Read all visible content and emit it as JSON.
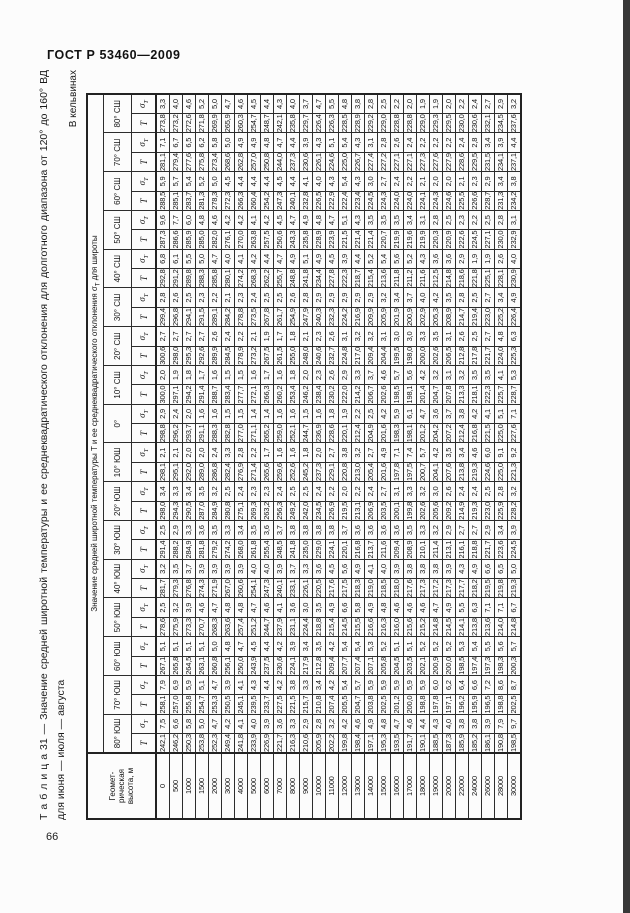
{
  "page": {
    "header": "ГОСТ Р 53460—2009",
    "page_number": "66",
    "caption_line1": "Т а б л и ц а  31 — Значение средней широтной температуры и ее среднеквадратического отклонения для долготного диапазона от 120° до 160° ВД",
    "caption_line2": "для июня — июля — августа",
    "units_note": "В кельвинах"
  },
  "table": {
    "height_header_lines": [
      "Геомет-",
      "рическая",
      "высота, м"
    ],
    "span_header_a": "Значение средней широтной температуры Т и ее среднеквадратического отклонения σ",
    "span_header_sub": "Т",
    "span_header_b": " для широты",
    "t_label": "Т",
    "sigma_label": "σ",
    "sigma_sub": "Т",
    "heights": [
      "0",
      "500",
      "1000",
      "1500",
      "2000",
      "3000",
      "4000",
      "5000",
      "6000",
      "7000",
      "8000",
      "9000",
      "10000",
      "11000",
      "12000",
      "13000",
      "14000",
      "15000",
      "16000",
      "17000",
      "18000",
      "19000",
      "20000",
      "22000",
      "24000",
      "26000",
      "28000",
      "30000"
    ],
    "latitudes": [
      {
        "label": "80° ЮШ",
        "T": [
          "242,1",
          "246,2",
          "250,3",
          "253,8",
          "252,3",
          "249,4",
          "241,8",
          "233,9",
          "226,9",
          "221,7",
          "216,3",
          "210,6",
          "205,9",
          "202,2",
          "199,8",
          "198,4",
          "197,1",
          "195,3",
          "193,5",
          "191,7",
          "190,1",
          "188,5",
          "187,3",
          "185,9",
          "185,2",
          "186,1",
          "190,8",
          "198,5"
        ],
        "sigma": [
          "7,5",
          "6,6",
          "5,8",
          "5,0",
          "4,7",
          "4,2",
          "4,1",
          "4,0",
          "3,9",
          "3,6",
          "3,3",
          "2,9",
          "2,8",
          "3,2",
          "4,2",
          "4,6",
          "4,9",
          "4,8",
          "4,7",
          "4,6",
          "4,4",
          "4,3",
          "4,0",
          "3,8",
          "3,8",
          "3,9",
          "7,9",
          "9,7"
        ]
      },
      {
        "label": "70° ЮШ",
        "T": [
          "258,1",
          "257,0",
          "255,8",
          "254,7",
          "253,3",
          "250,5",
          "245,1",
          "239,5",
          "233,7",
          "227,5",
          "221,5",
          "215,7",
          "210,8",
          "207,4",
          "205,5",
          "204,7",
          "203,8",
          "202,5",
          "201,2",
          "200,0",
          "198,8",
          "197,8",
          "197,1",
          "196,2",
          "195,9",
          "196,5",
          "198,8",
          "202,5"
        ],
        "sigma": [
          "7,9",
          "6,9",
          "5,9",
          "5,1",
          "4,7",
          "3,9",
          "4,1",
          "4,3",
          "4,4",
          "4,2",
          "3,8",
          "3,3",
          "3,4",
          "4,2",
          "5,4",
          "5,7",
          "5,9",
          "5,9",
          "5,9",
          "5,9",
          "5,9",
          "6,0",
          "6,2",
          "6,4",
          "6,6",
          "7,2",
          "8,6",
          "8,7"
        ]
      },
      {
        "label": "60° ЮШ",
        "T": [
          "267,1",
          "265,8",
          "264,5",
          "263,1",
          "260,8",
          "256,1",
          "250,0",
          "243,9",
          "237,5",
          "230,6",
          "224,1",
          "217,9",
          "212,8",
          "209,4",
          "207,7",
          "207,4",
          "207,1",
          "205,8",
          "204,5",
          "203,5",
          "202,1",
          "200,9",
          "200,0",
          "198,5",
          "197,4",
          "197,3",
          "198,3",
          "200,3"
        ],
        "sigma": [
          "5,1",
          "5,1",
          "5,1",
          "5,1",
          "5,0",
          "4,8",
          "4,7",
          "4,5",
          "4,4",
          "4,2",
          "3,9",
          "3,4",
          "3,5",
          "4,2",
          "5,4",
          "5,4",
          "5,3",
          "5,2",
          "5,1",
          "5,1",
          "5,2",
          "5,2",
          "5,2",
          "5,3",
          "5,4",
          "5,5",
          "5,6",
          "5,7"
        ]
      },
      {
        "label": "50° ЮШ",
        "T": [
          "278,6",
          "275,9",
          "273,3",
          "270,7",
          "268,3",
          "263,6",
          "257,4",
          "251,2",
          "244,7",
          "237,9",
          "231,1",
          "224,4",
          "218,8",
          "215,4",
          "214,5",
          "215,5",
          "216,6",
          "216,3",
          "216,0",
          "215,6",
          "215,2",
          "214,8",
          "214,5",
          "214,1",
          "213,8",
          "213,6",
          "214,0",
          "214,8"
        ],
        "sigma": [
          "2,5",
          "3,2",
          "3,9",
          "4,6",
          "4,7",
          "4,8",
          "4,8",
          "4,7",
          "4,6",
          "4,1",
          "3,6",
          "3,0",
          "3,5",
          "4,9",
          "6,6",
          "5,8",
          "4,9",
          "4,8",
          "4,6",
          "4,6",
          "4,6",
          "4,7",
          "4,9",
          "5,5",
          "6,3",
          "7,1",
          "7,1",
          "6,7"
        ]
      },
      {
        "label": "40° ЮШ",
        "T": [
          "281,7",
          "279,3",
          "276,8",
          "274,3",
          "271,9",
          "267,0",
          "260,6",
          "254,1",
          "247,3",
          "240,1",
          "233,1",
          "226,1",
          "220,5",
          "217,6",
          "217,5",
          "218,3",
          "219,0",
          "218,5",
          "218,0",
          "217,6",
          "217,3",
          "217,2",
          "217,3",
          "217,7",
          "218,2",
          "219,5",
          "219,8",
          "219,3"
        ],
        "sigma": [
          "3,2",
          "3,5",
          "3,7",
          "3,9",
          "3,9",
          "3,9",
          "3,9",
          "4,0",
          "4,0",
          "3,9",
          "3,7",
          "3,3",
          "3,6",
          "4,5",
          "5,6",
          "4,9",
          "4,1",
          "4,0",
          "3,9",
          "3,8",
          "3,8",
          "3,8",
          "3,9",
          "4,3",
          "4,9",
          "6,6",
          "6,5",
          "5,0"
        ]
      },
      {
        "label": "30° ЮШ",
        "T": [
          "291,4",
          "288,2",
          "284,9",
          "281,8",
          "279,2",
          "274,2",
          "268,0",
          "261,8",
          "255,4",
          "248,5",
          "241,8",
          "235,0",
          "229,0",
          "224,1",
          "220,1",
          "216,8",
          "213,7",
          "211,6",
          "209,4",
          "208,9",
          "210,1",
          "211,4",
          "213,1",
          "216,1",
          "218,8",
          "221,7",
          "223,6",
          "224,5"
        ],
        "sigma": [
          "2,5",
          "2,9",
          "3,3",
          "3,6",
          "3,5",
          "3,3",
          "3,4",
          "3,5",
          "3,6",
          "3,7",
          "3,8",
          "3,8",
          "3,8",
          "3,8",
          "3,7",
          "3,6",
          "3,6",
          "3,6",
          "3,6",
          "3,5",
          "3,3",
          "3,2",
          "2,9",
          "2,7",
          "2,7",
          "2,9",
          "3,4",
          "3,9"
        ]
      },
      {
        "label": "20° ЮШ",
        "T": [
          "298,0",
          "294,3",
          "290,5",
          "287,0",
          "284,9",
          "280,8",
          "275,1",
          "269,3",
          "263,2",
          "256,3",
          "249,2",
          "242,0",
          "234,5",
          "226,9",
          "219,5",
          "213,1",
          "206,9",
          "203,5",
          "200,1",
          "199,8",
          "202,6",
          "205,6",
          "209,2",
          "214,9",
          "219,3",
          "223,0",
          "225,9",
          "228,2"
        ],
        "sigma": [
          "3,4",
          "3,3",
          "3,4",
          "3,5",
          "3,2",
          "2,5",
          "2,4",
          "2,3",
          "2,3",
          "2,4",
          "2,5",
          "2,5",
          "2,4",
          "2,2",
          "2,0",
          "2,2",
          "2,4",
          "2,7",
          "3,1",
          "3,3",
          "3,2",
          "3,0",
          "2,6",
          "2,4",
          "2,4",
          "2,5",
          "2,8",
          "3,2"
        ]
      },
      {
        "label": "10° ЮШ",
        "T": [
          "298,1",
          "295,1",
          "292,0",
          "289,0",
          "286,8",
          "282,4",
          "276,9",
          "271,4",
          "265,6",
          "259,6",
          "252,6",
          "245,2",
          "237,3",
          "229,1",
          "220,8",
          "213,0",
          "205,4",
          "201,6",
          "197,8",
          "197,5",
          "200,7",
          "204,1",
          "207,6",
          "213,8",
          "219,3",
          "224,6",
          "225,0",
          "221,3"
        ],
        "sigma": [
          "2,1",
          "2,1",
          "2,0",
          "2,0",
          "2,4",
          "3,3",
          "2,8",
          "2,2",
          "1,7",
          "1,6",
          "1,6",
          "1,8",
          "2,0",
          "2,7",
          "3,8",
          "3,2",
          "2,7",
          "4,9",
          "7,1",
          "7,4",
          "5,7",
          "4,2",
          "3,5",
          "3,4",
          "4,6",
          "6,0",
          "9,1",
          "9,2"
        ]
      },
      {
        "label": "0°",
        "T": [
          "298,8",
          "296,2",
          "293,7",
          "291,1",
          "288,3",
          "282,8",
          "277,0",
          "271,1",
          "265,2",
          "259,0",
          "252,1",
          "244,7",
          "236,9",
          "228,6",
          "220,1",
          "212,4",
          "204,9",
          "201,6",
          "198,3",
          "198,1",
          "201,2",
          "204,2",
          "207,2",
          "212,4",
          "216,8",
          "221,5",
          "225,0",
          "227,6"
        ],
        "sigma": [
          "2,9",
          "2,4",
          "2,0",
          "1,6",
          "1,6",
          "1,5",
          "1,5",
          "1,4",
          "1,4",
          "1,6",
          "1,6",
          "1,5",
          "1,6",
          "1,8",
          "1,9",
          "2,2",
          "2,5",
          "4,2",
          "5,9",
          "6,1",
          "4,7",
          "3,6",
          "3,7",
          "3,8",
          "4,2",
          "4,1",
          "5,1",
          "7,1"
        ]
      },
      {
        "label": "10° СШ",
        "T": [
          "300,0",
          "297,1",
          "294,2",
          "291,4",
          "288,7",
          "283,4",
          "277,7",
          "272,1",
          "266,3",
          "260,2",
          "253,4",
          "246,2",
          "238,4",
          "230,2",
          "222,0",
          "214,2",
          "206,7",
          "202,6",
          "198,5",
          "198,1",
          "201,4",
          "204,7",
          "207,8",
          "213,3",
          "218,1",
          "222,3",
          "225,7",
          "228,7"
        ],
        "sigma": [
          "2,0",
          "1,9",
          "1,8",
          "1,7",
          "1,6",
          "1,5",
          "1,5",
          "1,6",
          "1,7",
          "1,6",
          "1,8",
          "2,0",
          "2,3",
          "2,6",
          "2,9",
          "3,3",
          "3,7",
          "4,6",
          "5,7",
          "5,6",
          "4,2",
          "3,2",
          "3,1",
          "3,2",
          "3,5",
          "3,5",
          "4,1",
          "5,3"
        ]
      },
      {
        "label": "20° СШ",
        "T": [
          "300,6",
          "298,0",
          "295,3",
          "292,6",
          "289,9",
          "284,5",
          "278,9",
          "273,2",
          "267,5",
          "261,5",
          "255,0",
          "248,0",
          "240,6",
          "232,7",
          "224,8",
          "217,0",
          "209,4",
          "204,4",
          "199,5",
          "198,0",
          "200,0",
          "202,6",
          "206,5",
          "212,8",
          "217,8",
          "221,7",
          "224,0",
          "225,3"
        ],
        "sigma": [
          "2,7",
          "2,7",
          "2,7",
          "2,7",
          "2,6",
          "2,4",
          "2,2",
          "2,1",
          "1,9",
          "1,7",
          "1,8",
          "2,1",
          "2,3",
          "2,6",
          "3,1",
          "3,2",
          "3,2",
          "3,1",
          "3,0",
          "3,0",
          "3,3",
          "3,5",
          "3,1",
          "2,6",
          "2,5",
          "2,7",
          "4,8",
          "6,3"
        ]
      },
      {
        "label": "30° СШ",
        "T": [
          "299,4",
          "296,8",
          "294,1",
          "291,5",
          "289,1",
          "284,2",
          "278,8",
          "273,5",
          "267,8",
          "261,7",
          "254,9",
          "247,9",
          "240,3",
          "232,3",
          "224,2",
          "216,9",
          "209,9",
          "205,9",
          "201,9",
          "200,9",
          "202,9",
          "205,3",
          "208,9",
          "214,7",
          "219,4",
          "223,0",
          "225,2",
          "226,4"
        ],
        "sigma": [
          "2,8",
          "2,6",
          "2,5",
          "2,3",
          "2,2",
          "2,1",
          "2,3",
          "2,4",
          "2,5",
          "2,5",
          "2,6",
          "2,8",
          "2,9",
          "2,9",
          "2,9",
          "2,9",
          "2,9",
          "3,2",
          "3,4",
          "3,7",
          "4,0",
          "4,2",
          "3,5",
          "2,8",
          "2,5",
          "2,7",
          "3,4",
          "4,9"
        ]
      },
      {
        "label": "40° СШ",
        "T": [
          "292,8",
          "291,2",
          "289,8",
          "288,3",
          "285,8",
          "280,1",
          "274,2",
          "268,3",
          "262,2",
          "255,7",
          "248,8",
          "241,8",
          "234,4",
          "227,8",
          "222,3",
          "218,7",
          "215,4",
          "213,6",
          "211,8",
          "211,2",
          "211,6",
          "212,5",
          "214,8",
          "218,6",
          "221,8",
          "225,1",
          "228,1",
          "230,9"
        ],
        "sigma": [
          "6,8",
          "6,1",
          "5,5",
          "5,0",
          "4,7",
          "4,0",
          "4,1",
          "4,2",
          "4,4",
          "4,7",
          "4,9",
          "5,1",
          "4,9",
          "4,5",
          "3,9",
          "4,4",
          "5,2",
          "5,4",
          "5,6",
          "5,2",
          "4,3",
          "3,6",
          "3,6",
          "2,9",
          "1,9",
          "1,9",
          "2,6",
          "4,0"
        ]
      },
      {
        "label": "50° СШ",
        "T": [
          "287,3",
          "286,6",
          "285,9",
          "285,0",
          "282,0",
          "276,1",
          "270,0",
          "263,8",
          "257,5",
          "250,6",
          "243,3",
          "235,8",
          "228,9",
          "223,9",
          "221,5",
          "221,4",
          "221,4",
          "220,7",
          "219,9",
          "219,6",
          "219,9",
          "220,3",
          "220,9",
          "222,6",
          "224,5",
          "227,1",
          "230,0",
          "232,9"
        ],
        "sigma": [
          "9,6",
          "7,7",
          "6,0",
          "4,8",
          "4,6",
          "4,2",
          "4,2",
          "4,1",
          "4,2",
          "4,5",
          "4,7",
          "4,9",
          "4,8",
          "4,7",
          "5,1",
          "4,3",
          "3,5",
          "3,5",
          "3,5",
          "3,4",
          "3,1",
          "2,8",
          "2,5",
          "2,3",
          "2,2",
          "2,5",
          "2,8",
          "3,1"
        ]
      },
      {
        "label": "60° СШ",
        "T": [
          "288,5",
          "285,1",
          "283,7",
          "281,3",
          "278,3",
          "272,3",
          "266,3",
          "260,4",
          "254,2",
          "247,3",
          "240,1",
          "232,8",
          "226,5",
          "222,9",
          "222,4",
          "223,4",
          "224,5",
          "224,3",
          "224,0",
          "224,0",
          "224,1",
          "224,3",
          "224,6",
          "225,5",
          "226,6",
          "228,7",
          "231,3",
          "234,2"
        ],
        "sigma": [
          "5,9",
          "5,7",
          "5,4",
          "5,2",
          "5,0",
          "4,5",
          "4,4",
          "4,4",
          "4,4",
          "4,5",
          "4,4",
          "4,1",
          "4,0",
          "4,3",
          "5,4",
          "4,3",
          "3,0",
          "2,7",
          "2,4",
          "2,2",
          "2,1",
          "2,0",
          "2,0",
          "2,1",
          "2,3",
          "2,9",
          "3,4",
          "3,8"
        ]
      },
      {
        "label": "70° СШ",
        "T": [
          "281,1",
          "279,4",
          "277,6",
          "275,8",
          "273,4",
          "268,6",
          "262,8",
          "257,0",
          "250,8",
          "244,0",
          "237,3",
          "230,6",
          "226,1",
          "224,6",
          "225,0",
          "226,7",
          "227,4",
          "227,2",
          "227,1",
          "227,1",
          "227,3",
          "227,6",
          "227,9",
          "228,6",
          "229,5",
          "231,5",
          "234,1",
          "237,1"
        ],
        "sigma": [
          "7,1",
          "6,7",
          "6,5",
          "6,2",
          "5,8",
          "5,0",
          "4,9",
          "4,9",
          "4,8",
          "4,7",
          "4,4",
          "3,9",
          "4,3",
          "5,1",
          "5,4",
          "4,3",
          "3,1",
          "2,8",
          "2,6",
          "2,4",
          "2,2",
          "2,2",
          "2,2",
          "2,4",
          "2,8",
          "3,4",
          "3,9",
          "4,4"
        ]
      },
      {
        "label": "80° СШ",
        "T": [
          "273,8",
          "273,2",
          "272,6",
          "271,8",
          "269,9",
          "265,9",
          "260,3",
          "254,7",
          "248,7",
          "242,1",
          "235,8",
          "229,7",
          "226,4",
          "226,3",
          "228,5",
          "228,9",
          "229,2",
          "229,0",
          "228,8",
          "228,8",
          "229,0",
          "229,3",
          "229,5",
          "230,0",
          "230,6",
          "232,1",
          "234,5",
          "237,6"
        ],
        "sigma": [
          "3,3",
          "4,0",
          "4,6",
          "5,2",
          "5,0",
          "4,7",
          "4,6",
          "4,5",
          "4,4",
          "4,3",
          "4,0",
          "3,7",
          "4,7",
          "5,5",
          "4,8",
          "3,8",
          "2,8",
          "2,5",
          "2,2",
          "2,0",
          "1,9",
          "1,9",
          "2,0",
          "2,2",
          "2,4",
          "2,7",
          "2,9",
          "3,2"
        ]
      }
    ]
  }
}
